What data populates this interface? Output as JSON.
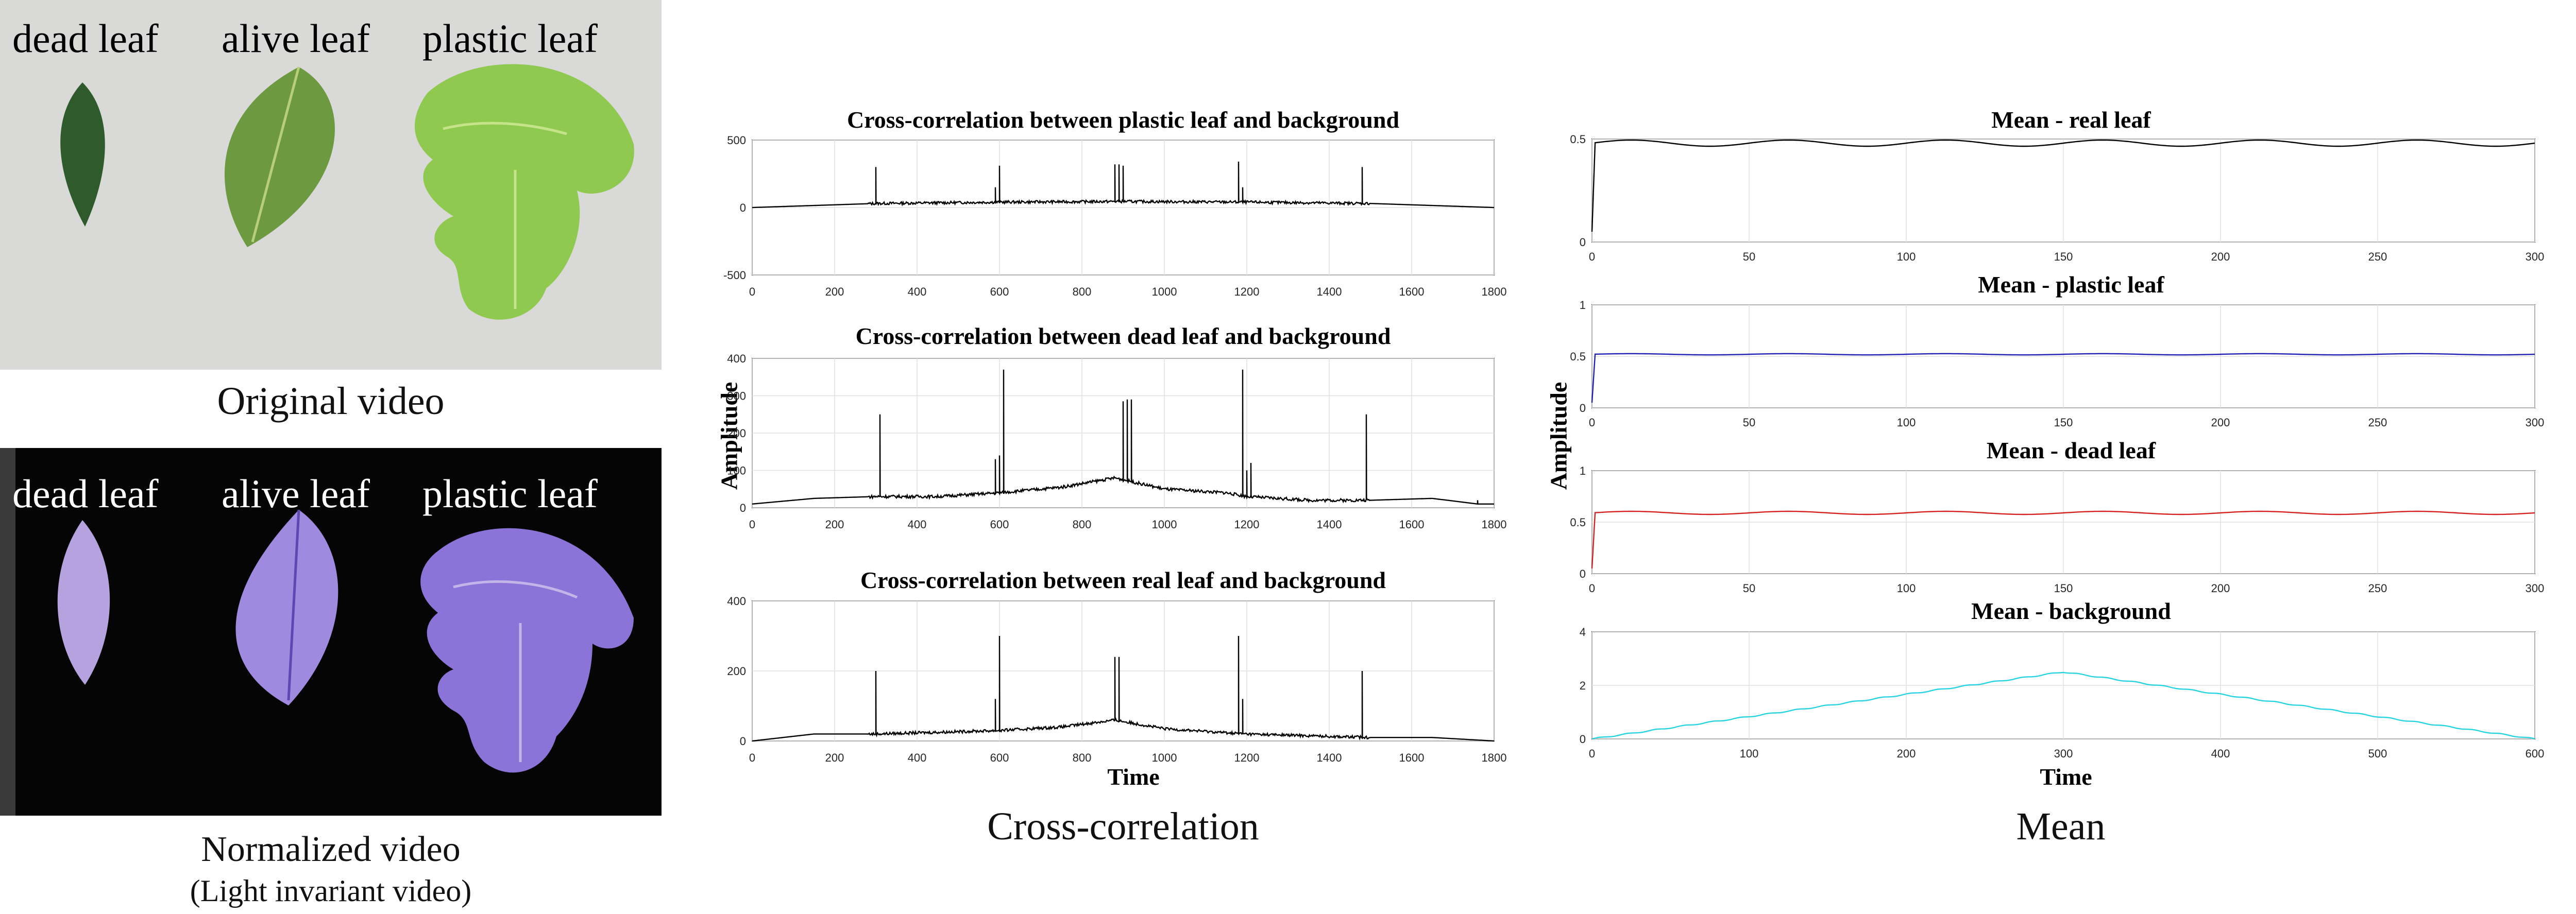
{
  "photos": {
    "original": {
      "labels": [
        "dead leaf",
        "alive leaf",
        "plastic leaf"
      ],
      "caption": "Original video",
      "leaf_colors": [
        "#2f5a2c",
        "#6d9940",
        "#8fc94f"
      ],
      "background": "#d9d9d7"
    },
    "normalized": {
      "labels": [
        "dead leaf",
        "alive leaf",
        "plastic leaf"
      ],
      "caption": "Normalized video",
      "subcaption": "(Light invariant video)",
      "leaf_colors": [
        "#b5a2de",
        "#9f8ae0",
        "#8c73d8"
      ],
      "background": "#050505"
    }
  },
  "crosscorr": {
    "caption": "Cross-correlation",
    "ylabel": "Amplitude",
    "xlabel": "Time"
  },
  "mean": {
    "caption": "Mean",
    "ylabel": "Amplitude",
    "xlabel": "Time"
  },
  "chart_data": [
    {
      "type": "line",
      "group": "crosscorr",
      "title": "Cross-correlation between plastic leaf and background",
      "xlim": [
        0,
        1800
      ],
      "ylim": [
        -500,
        500
      ],
      "xticks": [
        0,
        200,
        400,
        600,
        800,
        1000,
        1200,
        1400,
        1600,
        1800
      ],
      "yticks": [
        -500,
        0,
        500
      ],
      "color": "#000000",
      "series": [
        {
          "baseline": [
            [
              0,
              0
            ],
            [
              300,
              30
            ],
            [
              600,
              40
            ],
            [
              900,
              45
            ],
            [
              1200,
              40
            ],
            [
              1500,
              30
            ],
            [
              1800,
              0
            ]
          ],
          "spikes": [
            [
              300,
              300
            ],
            [
              590,
              150
            ],
            [
              600,
              310
            ],
            [
              880,
              320
            ],
            [
              890,
              320
            ],
            [
              900,
              310
            ],
            [
              1180,
              340
            ],
            [
              1190,
              150
            ],
            [
              1480,
              300
            ]
          ]
        }
      ]
    },
    {
      "type": "line",
      "group": "crosscorr",
      "title": "Cross-correlation between dead leaf and background",
      "xlim": [
        0,
        1800
      ],
      "ylim": [
        0,
        400
      ],
      "xticks": [
        0,
        200,
        400,
        600,
        800,
        1000,
        1200,
        1400,
        1600,
        1800
      ],
      "yticks": [
        0,
        100,
        200,
        300,
        400
      ],
      "color": "#000000",
      "series": [
        {
          "baseline": [
            [
              0,
              10
            ],
            [
              150,
              25
            ],
            [
              300,
              30
            ],
            [
              450,
              30
            ],
            [
              600,
              40
            ],
            [
              750,
              55
            ],
            [
              880,
              80
            ],
            [
              1000,
              50
            ],
            [
              1150,
              40
            ],
            [
              1200,
              30
            ],
            [
              1350,
              20
            ],
            [
              1500,
              20
            ],
            [
              1650,
              25
            ],
            [
              1760,
              10
            ]
          ],
          "spikes": [
            [
              310,
              250
            ],
            [
              590,
              130
            ],
            [
              600,
              140
            ],
            [
              610,
              370
            ],
            [
              900,
              285
            ],
            [
              910,
              290
            ],
            [
              920,
              290
            ],
            [
              1190,
              370
            ],
            [
              1200,
              100
            ],
            [
              1210,
              120
            ],
            [
              1490,
              250
            ],
            [
              1760,
              20
            ]
          ]
        }
      ]
    },
    {
      "type": "line",
      "group": "crosscorr",
      "title": "Cross-correlation between real leaf and background",
      "xlim": [
        0,
        1800
      ],
      "ylim": [
        0,
        400
      ],
      "xticks": [
        0,
        200,
        400,
        600,
        800,
        1000,
        1200,
        1400,
        1600,
        1800
      ],
      "yticks": [
        0,
        200,
        400
      ],
      "color": "#000000",
      "series": [
        {
          "baseline": [
            [
              0,
              0
            ],
            [
              150,
              20
            ],
            [
              300,
              20
            ],
            [
              450,
              25
            ],
            [
              600,
              30
            ],
            [
              750,
              40
            ],
            [
              880,
              60
            ],
            [
              1000,
              35
            ],
            [
              1200,
              20
            ],
            [
              1350,
              15
            ],
            [
              1500,
              10
            ],
            [
              1650,
              10
            ],
            [
              1800,
              0
            ]
          ],
          "spikes": [
            [
              300,
              200
            ],
            [
              590,
              120
            ],
            [
              600,
              300
            ],
            [
              880,
              240
            ],
            [
              890,
              240
            ],
            [
              1180,
              300
            ],
            [
              1190,
              120
            ],
            [
              1480,
              200
            ]
          ]
        }
      ]
    },
    {
      "type": "line",
      "group": "mean",
      "title": "Mean - real leaf",
      "xlim": [
        0,
        300
      ],
      "ylim": [
        0,
        0.5
      ],
      "xticks": [
        0,
        50,
        100,
        150,
        200,
        250,
        300
      ],
      "yticks": [
        0,
        0.5
      ],
      "color": "#000000",
      "series": [
        {
          "start": 0.05,
          "level": 0.48,
          "wave": 0.015,
          "period": 50
        }
      ]
    },
    {
      "type": "line",
      "group": "mean",
      "title": "Mean - plastic leaf",
      "xlim": [
        0,
        300
      ],
      "ylim": [
        0,
        1
      ],
      "xticks": [
        0,
        50,
        100,
        150,
        200,
        250,
        300
      ],
      "yticks": [
        0,
        0.5,
        1
      ],
      "color": "#1f1fb4",
      "series": [
        {
          "start": 0.05,
          "level": 0.52,
          "wave": 0.006,
          "period": 50
        }
      ]
    },
    {
      "type": "line",
      "group": "mean",
      "title": "Mean - dead leaf",
      "xlim": [
        0,
        300
      ],
      "ylim": [
        0,
        1
      ],
      "xticks": [
        0,
        50,
        100,
        150,
        200,
        250,
        300
      ],
      "yticks": [
        0,
        0.5,
        1
      ],
      "color": "#d42020",
      "series": [
        {
          "start": 0.05,
          "level": 0.59,
          "wave": 0.015,
          "period": 50
        }
      ]
    },
    {
      "type": "line",
      "group": "mean",
      "title": "Mean - background",
      "xlim": [
        0,
        600
      ],
      "ylim": [
        0,
        4
      ],
      "xticks": [
        0,
        100,
        200,
        300,
        400,
        500,
        600
      ],
      "yticks": [
        0,
        2,
        4
      ],
      "color": "#25d4e0",
      "series": [
        {
          "triangle": [
            [
              0,
              0
            ],
            [
              300,
              2.5
            ],
            [
              600,
              0
            ]
          ]
        }
      ]
    }
  ]
}
